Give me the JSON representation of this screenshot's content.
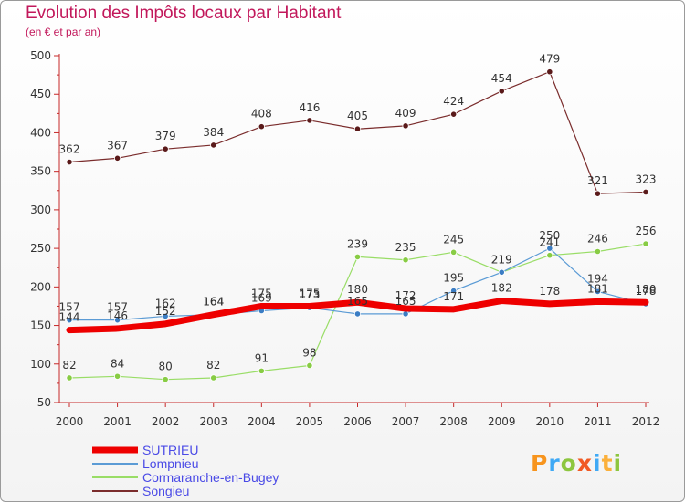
{
  "title": "Evolution des Impôts locaux par Habitant",
  "subtitle": "(en € et par an)",
  "logo": {
    "letters": [
      "P",
      "r",
      "o",
      "x",
      "i",
      "t",
      "i"
    ],
    "colors": [
      "#f7941d",
      "#3fa9f5",
      "#8dc63f",
      "#f15a24",
      "#3fa9f5",
      "#fbb03b",
      "#8dc63f"
    ]
  },
  "chart_data": {
    "type": "line",
    "categories": [
      "2000",
      "2001",
      "2002",
      "2003",
      "2004",
      "2005",
      "2006",
      "2007",
      "2008",
      "2009",
      "2010",
      "2011",
      "2012"
    ],
    "ylim": [
      50,
      500
    ],
    "yticks": [
      50,
      100,
      150,
      200,
      250,
      300,
      350,
      400,
      450,
      500
    ],
    "grid": false,
    "legend_placement": "bottom-left",
    "series": [
      {
        "name": "SUTRIEU",
        "color": "#ee0000",
        "width": 7,
        "marker": "none",
        "values": [
          144,
          146,
          152,
          164,
          175,
          175,
          180,
          172,
          171,
          182,
          178,
          181,
          180
        ],
        "labels": [
          "144",
          "146",
          "152",
          "164",
          "175",
          "175",
          "180",
          "172",
          "171",
          "182",
          "178",
          "181",
          "180"
        ]
      },
      {
        "name": "Lompnieu",
        "color": "#5b9bd5",
        "width": 1.2,
        "marker": "#3b7dc4",
        "values": [
          157,
          157,
          162,
          164,
          169,
          173,
          165,
          165,
          195,
          219,
          250,
          194,
          178
        ],
        "labels": [
          "157",
          "157",
          "162",
          "164",
          "169",
          "173",
          "165",
          "165",
          "195",
          "219",
          "250",
          "194",
          "178"
        ]
      },
      {
        "name": "Cormaranche-en-Bugey",
        "color": "#99dd66",
        "width": 1.2,
        "marker": "#88cc44",
        "values": [
          82,
          84,
          80,
          82,
          91,
          98,
          239,
          235,
          245,
          219,
          241,
          246,
          256
        ],
        "labels": [
          "82",
          "84",
          "80",
          "82",
          "91",
          "98",
          "239",
          "235",
          "245",
          "219",
          "241",
          "246",
          "256"
        ]
      },
      {
        "name": "Songieu",
        "color": "#7a2c2c",
        "width": 1.2,
        "marker": "#5a1a1a",
        "values": [
          362,
          367,
          379,
          384,
          408,
          416,
          405,
          409,
          424,
          454,
          479,
          321,
          323
        ],
        "labels": [
          "362",
          "367",
          "379",
          "384",
          "408",
          "416",
          "405",
          "409",
          "424",
          "454",
          "479",
          "321",
          "323"
        ]
      }
    ]
  }
}
